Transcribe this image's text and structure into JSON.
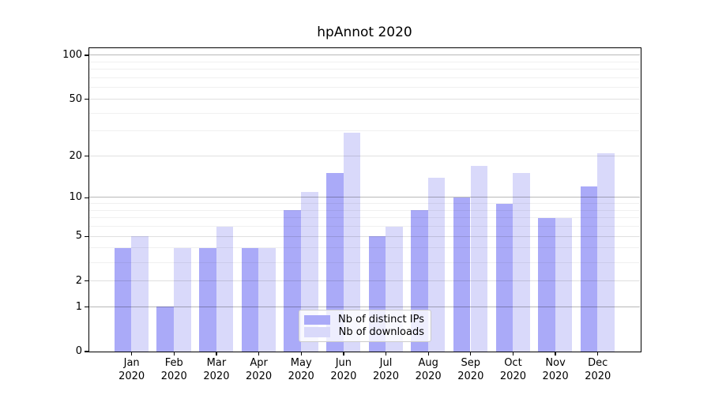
{
  "chart_data": {
    "type": "bar",
    "title": "hpAnnot 2020",
    "categories": [
      {
        "month": "Jan",
        "year": "2020"
      },
      {
        "month": "Feb",
        "year": "2020"
      },
      {
        "month": "Mar",
        "year": "2020"
      },
      {
        "month": "Apr",
        "year": "2020"
      },
      {
        "month": "May",
        "year": "2020"
      },
      {
        "month": "Jun",
        "year": "2020"
      },
      {
        "month": "Jul",
        "year": "2020"
      },
      {
        "month": "Aug",
        "year": "2020"
      },
      {
        "month": "Sep",
        "year": "2020"
      },
      {
        "month": "Oct",
        "year": "2020"
      },
      {
        "month": "Nov",
        "year": "2020"
      },
      {
        "month": "Dec",
        "year": "2020"
      }
    ],
    "series": [
      {
        "name": "Nb of distinct IPs",
        "color": "#aaaaf8",
        "values": [
          4,
          1,
          4,
          4,
          8,
          15,
          5,
          8,
          10,
          9,
          7,
          12
        ]
      },
      {
        "name": "Nb of downloads",
        "color": "#d9d9fa",
        "values": [
          5,
          4,
          6,
          4,
          11,
          29,
          6,
          14,
          17,
          15,
          7,
          21
        ]
      }
    ],
    "y_axis": {
      "scale": "log1p",
      "major_ticks": [
        0,
        1,
        2,
        5,
        10,
        20,
        50,
        100
      ],
      "decade_gridlines": [
        1,
        10,
        100
      ],
      "minor_gridlines": [
        3,
        4,
        6,
        7,
        8,
        9,
        30,
        40,
        60,
        70,
        80,
        90
      ],
      "ylim": [
        0,
        112
      ]
    },
    "legend_position": "lower center inside",
    "grid": true,
    "colors": {
      "grid_minor": "rgba(0,0,0,0.06)",
      "grid_major": "rgba(0,0,0,0.12)",
      "grid_decade": "rgba(0,0,0,0.28)",
      "spine": "#000000"
    }
  }
}
